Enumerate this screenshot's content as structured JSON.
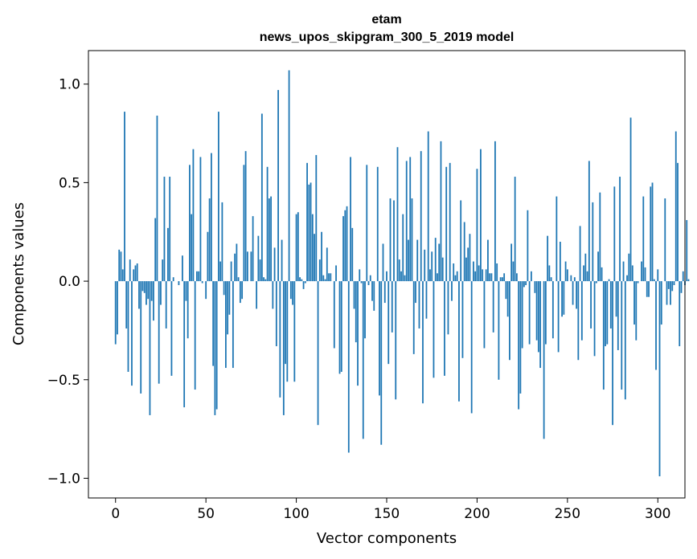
{
  "chart_data": {
    "type": "bar",
    "title_line1": "etam",
    "title_line2": "news_upos_skipgram_300_5_2019 model",
    "xlabel": "Vector components",
    "ylabel": "Components values",
    "xlim": [
      -15,
      315
    ],
    "ylim": [
      -1.1,
      1.17
    ],
    "xticks": [
      0,
      50,
      100,
      150,
      200,
      250,
      300
    ],
    "xtick_labels": [
      "0",
      "50",
      "100",
      "150",
      "200",
      "250",
      "300"
    ],
    "yticks": [
      -1.0,
      -0.5,
      0.0,
      0.5,
      1.0
    ],
    "ytick_labels": [
      "−1.0",
      "−0.5",
      "0.0",
      "0.5",
      "1.0"
    ],
    "bar_color": "#1f77b4",
    "values": [
      -0.32,
      -0.27,
      0.16,
      0.15,
      0.06,
      0.86,
      -0.24,
      -0.46,
      0.11,
      -0.53,
      0.06,
      0.08,
      0.09,
      -0.14,
      -0.57,
      -0.05,
      -0.06,
      -0.12,
      -0.09,
      -0.68,
      -0.1,
      -0.2,
      0.32,
      0.84,
      -0.52,
      -0.12,
      0.11,
      0.53,
      -0.24,
      0.27,
      0.53,
      -0.48,
      0.02,
      0.0,
      0.0,
      -0.02,
      0.0,
      0.13,
      -0.64,
      -0.1,
      -0.29,
      0.59,
      0.34,
      0.67,
      -0.55,
      0.05,
      0.05,
      0.63,
      -0.01,
      0.0,
      -0.09,
      0.25,
      0.42,
      0.65,
      -0.43,
      -0.68,
      -0.65,
      0.86,
      0.1,
      0.4,
      -0.07,
      -0.44,
      -0.27,
      -0.17,
      0.1,
      -0.44,
      0.14,
      0.19,
      0.02,
      -0.11,
      -0.09,
      0.59,
      0.66,
      0.15,
      0.0,
      0.15,
      0.33,
      0.0,
      -0.14,
      0.23,
      0.11,
      0.85,
      0.02,
      0.01,
      0.58,
      0.42,
      0.43,
      -0.14,
      0.17,
      -0.33,
      0.97,
      -0.59,
      0.21,
      -0.68,
      -0.42,
      -0.51,
      1.07,
      -0.09,
      -0.12,
      -0.51,
      0.34,
      0.35,
      0.02,
      0.01,
      -0.04,
      -0.01,
      0.6,
      0.49,
      0.5,
      0.34,
      0.24,
      0.64,
      -0.73,
      0.11,
      0.25,
      0.03,
      0.01,
      0.17,
      0.04,
      0.04,
      0.0,
      -0.34,
      0.08,
      0.0,
      -0.47,
      -0.46,
      0.33,
      0.36,
      0.38,
      -0.87,
      0.63,
      0.27,
      -0.14,
      -0.31,
      -0.53,
      0.06,
      -0.01,
      -0.8,
      -0.29,
      0.59,
      -0.02,
      0.03,
      -0.1,
      -0.15,
      0.0,
      0.58,
      -0.58,
      -0.83,
      0.19,
      -0.11,
      0.05,
      -0.42,
      0.42,
      -0.26,
      0.41,
      -0.6,
      0.68,
      0.11,
      0.05,
      0.34,
      0.03,
      0.61,
      0.21,
      0.63,
      0.42,
      -0.37,
      -0.11,
      0.21,
      -0.24,
      0.66,
      -0.62,
      0.16,
      -0.19,
      0.76,
      0.06,
      0.15,
      -0.49,
      0.22,
      0.04,
      0.19,
      0.71,
      0.12,
      -0.48,
      0.58,
      -0.27,
      0.6,
      -0.1,
      0.09,
      0.03,
      0.05,
      -0.61,
      0.41,
      -0.39,
      0.3,
      0.12,
      0.17,
      0.24,
      -0.67,
      0.1,
      0.05,
      0.57,
      0.08,
      0.67,
      0.06,
      -0.34,
      0.06,
      0.21,
      0.04,
      0.04,
      -0.26,
      0.71,
      0.09,
      -0.5,
      0.02,
      0.02,
      0.04,
      -0.09,
      -0.18,
      -0.4,
      0.19,
      0.1,
      0.53,
      0.04,
      -0.65,
      -0.57,
      -0.34,
      -0.03,
      -0.02,
      0.36,
      -0.32,
      0.05,
      0.0,
      -0.06,
      -0.3,
      -0.36,
      -0.44,
      0.0,
      -0.8,
      -0.32,
      0.23,
      0.08,
      0.02,
      -0.29,
      0.0,
      0.43,
      -0.36,
      0.2,
      -0.18,
      -0.17,
      0.1,
      0.06,
      0.0,
      0.03,
      -0.12,
      0.02,
      -0.14,
      -0.4,
      0.28,
      -0.3,
      0.08,
      0.14,
      0.05,
      0.61,
      -0.24,
      0.4,
      -0.38,
      -0.01,
      0.15,
      0.45,
      0.07,
      -0.55,
      -0.33,
      -0.32,
      0.01,
      -0.24,
      -0.73,
      0.48,
      -0.18,
      -0.35,
      0.53,
      -0.55,
      0.1,
      -0.6,
      0.03,
      0.14,
      0.83,
      0.08,
      -0.22,
      -0.3,
      -0.01,
      0.0,
      0.1,
      0.43,
      0.07,
      -0.08,
      -0.08,
      0.48,
      0.5,
      0.01,
      -0.45,
      0.06,
      -0.99,
      -0.22,
      0.0,
      0.42,
      -0.12,
      -0.04,
      -0.12,
      -0.05,
      -0.02,
      0.76,
      0.6,
      -0.33,
      -0.06,
      0.05,
      -0.02,
      0.31,
      0.01
    ]
  }
}
